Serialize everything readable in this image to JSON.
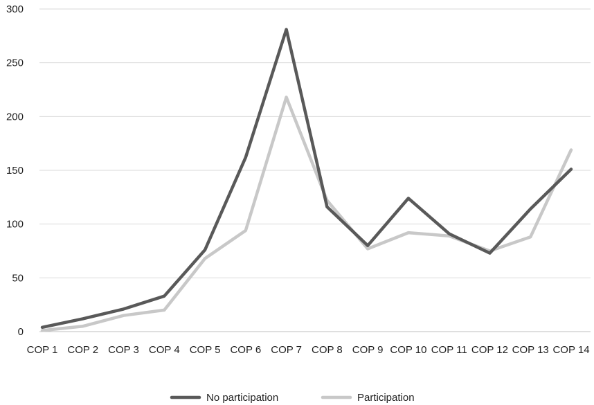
{
  "chart_data": {
    "type": "line",
    "categories": [
      "COP 1",
      "COP 2",
      "COP 3",
      "COP 4",
      "COP 5",
      "COP 6",
      "COP 7",
      "COP 8",
      "COP 9",
      "COP 10",
      "COP 11",
      "COP 12",
      "COP 13",
      "COP 14"
    ],
    "series": [
      {
        "name": "No participation",
        "color": "#595959",
        "values": [
          4,
          12,
          21,
          33,
          76,
          162,
          281,
          116,
          80,
          124,
          91,
          73,
          114,
          151
        ]
      },
      {
        "name": "Participation",
        "color": "#c8c8c8",
        "values": [
          1,
          5,
          15,
          20,
          68,
          94,
          218,
          122,
          77,
          92,
          89,
          75,
          88,
          169
        ]
      }
    ],
    "y_ticks": [
      "0",
      "50",
      "100",
      "150",
      "200",
      "250",
      "300"
    ],
    "ylim": [
      0,
      300
    ],
    "grid": true,
    "legend_position": "bottom",
    "title": "",
    "xlabel": "",
    "ylabel": ""
  }
}
